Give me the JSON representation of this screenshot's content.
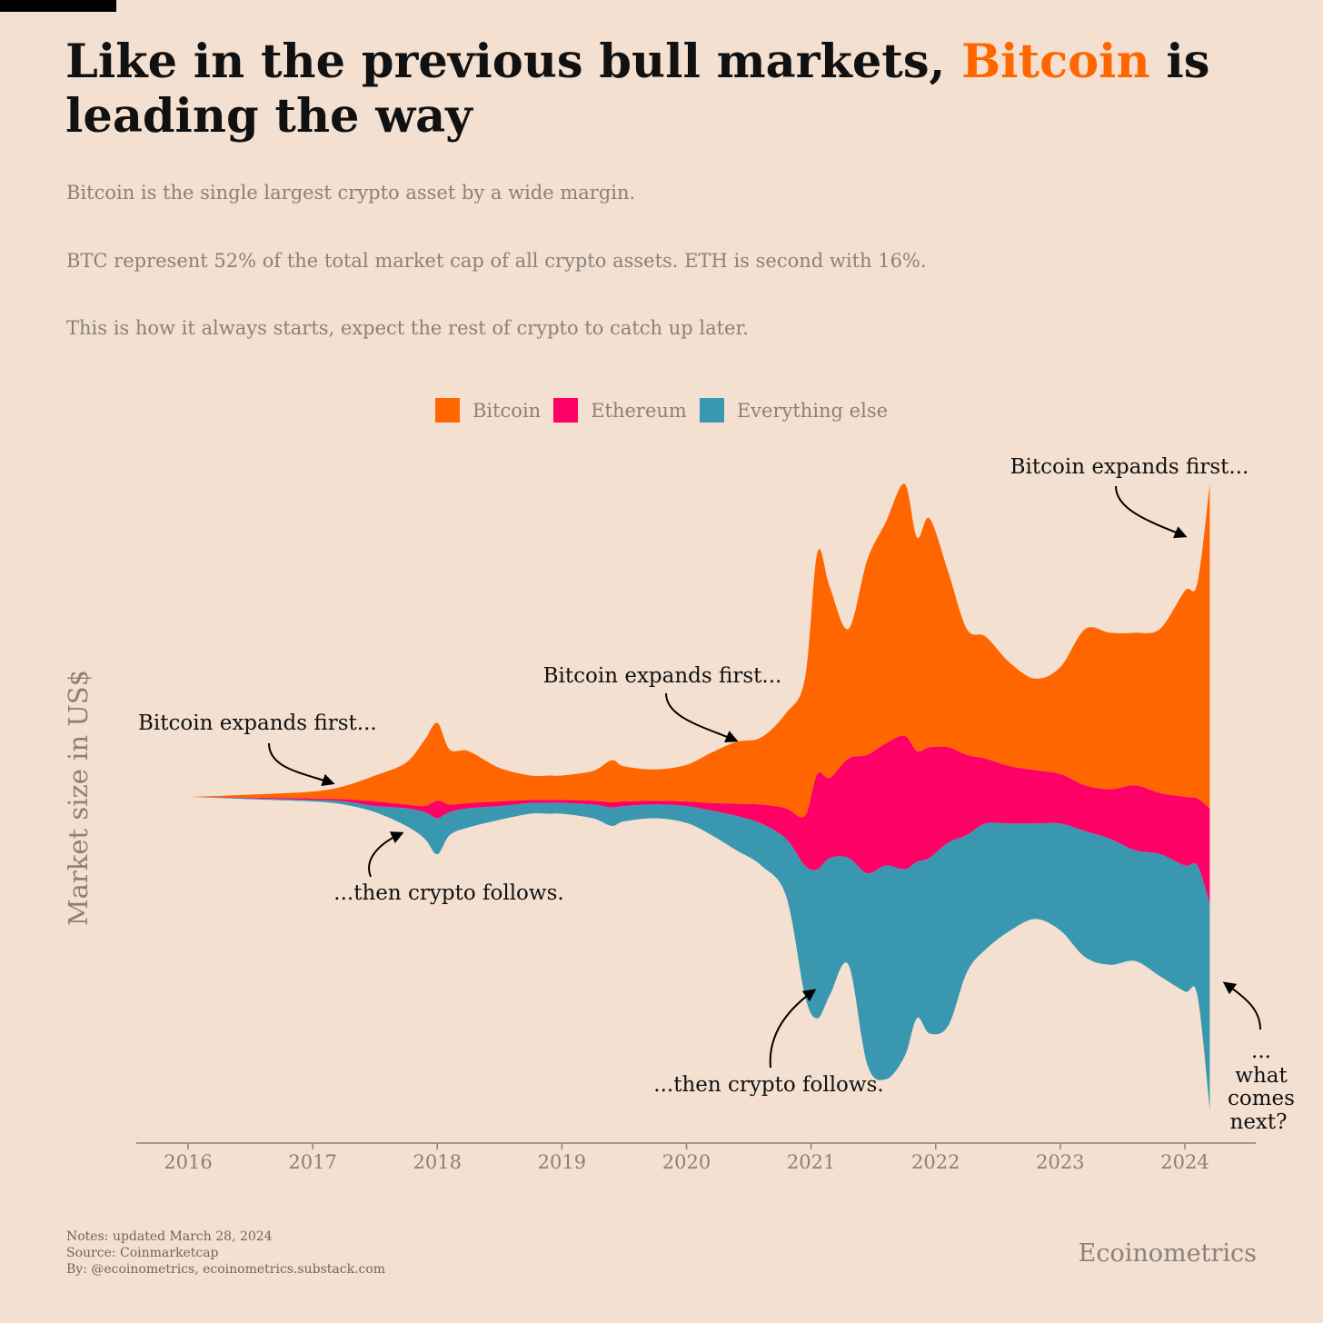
{
  "header": {
    "title_part1": "Like in the previous bull markets, ",
    "title_accent": "Bitcoin",
    "title_part2": " is leading the way",
    "subtitle_lines": [
      "Bitcoin is the single largest crypto asset by a wide margin.",
      "BTC represent 52% of the total market cap of all crypto assets. ETH is second with 16%.",
      "This is how it always starts, expect the rest of crypto to catch up later."
    ]
  },
  "colors": {
    "background": "#f3e0d0",
    "bitcoin": "#ff6600",
    "ethereum": "#ff0066",
    "everything_else": "#3a97b0",
    "accent": "#ff6600"
  },
  "footer": {
    "notes": "Notes: updated March 28, 2024",
    "source": "Source: Coinmarketcap",
    "by": "By: @ecoinometrics, ecoinometrics.substack.com",
    "brand": "Ecoinometrics"
  },
  "chart_data": {
    "type": "area",
    "layout": "streamgraph",
    "ylabel": "Market size in US$",
    "legend_position": "top-center",
    "x_ticks": [
      "2016",
      "2017",
      "2018",
      "2019",
      "2020",
      "2021",
      "2022",
      "2023",
      "2024"
    ],
    "series": [
      {
        "name": "Bitcoin",
        "color": "#ff6600"
      },
      {
        "name": "Ethereum",
        "color": "#ff0066"
      },
      {
        "name": "Everything else",
        "color": "#3a97b0"
      }
    ],
    "x": [
      2016.0,
      2016.5,
      2017.0,
      2017.25,
      2017.5,
      2017.75,
      2017.9,
      2018.0,
      2018.1,
      2018.25,
      2018.5,
      2018.75,
      2018.9,
      2019.0,
      2019.25,
      2019.4,
      2019.5,
      2019.75,
      2020.0,
      2020.2,
      2020.4,
      2020.6,
      2020.8,
      2020.95,
      2021.05,
      2021.15,
      2021.3,
      2021.45,
      2021.6,
      2021.75,
      2021.85,
      2021.95,
      2022.1,
      2022.25,
      2022.4,
      2022.6,
      2022.8,
      2023.0,
      2023.2,
      2023.4,
      2023.6,
      2023.8,
      2024.0,
      2024.1,
      2024.2
    ],
    "top": [
      0,
      0.03,
      0.07,
      0.14,
      0.28,
      0.45,
      0.75,
      0.97,
      0.62,
      0.6,
      0.38,
      0.28,
      0.28,
      0.28,
      0.34,
      0.48,
      0.4,
      0.36,
      0.42,
      0.58,
      0.72,
      0.78,
      1.1,
      1.55,
      3.2,
      2.75,
      2.2,
      3.1,
      3.6,
      4.1,
      3.4,
      3.65,
      2.95,
      2.2,
      2.1,
      1.75,
      1.55,
      1.7,
      2.2,
      2.15,
      2.15,
      2.2,
      2.7,
      2.8,
      4.1
    ],
    "btc_eth": [
      0,
      -0.01,
      -0.02,
      -0.03,
      -0.06,
      -0.1,
      -0.12,
      -0.05,
      -0.1,
      -0.08,
      -0.06,
      -0.04,
      -0.04,
      -0.04,
      -0.05,
      -0.07,
      -0.06,
      -0.05,
      -0.06,
      -0.08,
      -0.09,
      -0.1,
      -0.15,
      -0.25,
      0.3,
      0.25,
      0.5,
      0.55,
      0.7,
      0.8,
      0.6,
      0.65,
      0.65,
      0.55,
      0.5,
      0.4,
      0.35,
      0.3,
      0.15,
      0.1,
      0.15,
      0.05,
      0.0,
      -0.02,
      -0.15
    ],
    "eth_other": [
      0,
      -0.02,
      -0.04,
      -0.06,
      -0.12,
      -0.15,
      -0.2,
      -0.28,
      -0.2,
      -0.15,
      -0.12,
      -0.08,
      -0.08,
      -0.08,
      -0.1,
      -0.14,
      -0.12,
      -0.1,
      -0.12,
      -0.18,
      -0.25,
      -0.35,
      -0.55,
      -0.9,
      -0.95,
      -0.8,
      -0.8,
      -1.0,
      -0.9,
      -0.95,
      -0.85,
      -0.8,
      -0.6,
      -0.5,
      -0.35,
      -0.35,
      -0.35,
      -0.35,
      -0.45,
      -0.55,
      -0.7,
      -0.75,
      -0.9,
      -0.9,
      -1.4
    ],
    "bottom": [
      0,
      -0.03,
      -0.06,
      -0.1,
      -0.2,
      -0.38,
      -0.55,
      -0.75,
      -0.5,
      -0.4,
      -0.3,
      -0.22,
      -0.22,
      -0.22,
      -0.28,
      -0.38,
      -0.32,
      -0.28,
      -0.34,
      -0.5,
      -0.7,
      -0.9,
      -1.3,
      -2.6,
      -2.9,
      -2.6,
      -2.2,
      -3.5,
      -3.7,
      -3.4,
      -2.9,
      -3.1,
      -3.0,
      -2.3,
      -2.0,
      -1.75,
      -1.6,
      -1.75,
      -2.1,
      -2.2,
      -2.15,
      -2.35,
      -2.55,
      -2.6,
      -4.1
    ],
    "annotations": [
      {
        "text": "Bitcoin expands first...",
        "x": 2017.2,
        "y": 0.1,
        "series": "Bitcoin"
      },
      {
        "text": "...then crypto follows.",
        "x": 2017.75,
        "y": -0.45,
        "series": "Everything else"
      },
      {
        "text": "Bitcoin expands first...",
        "x": 2020.45,
        "y": 0.75,
        "series": "Bitcoin"
      },
      {
        "text": "...then crypto follows.",
        "x": 2021.05,
        "y": -2.7,
        "series": "Everything else"
      },
      {
        "text": "Bitcoin expands first...",
        "x": 2024.0,
        "y": 3.4,
        "series": "Bitcoin"
      },
      {
        "text": "... what comes next?",
        "x": 2024.3,
        "y": -2.3,
        "series": "Everything else"
      }
    ]
  }
}
